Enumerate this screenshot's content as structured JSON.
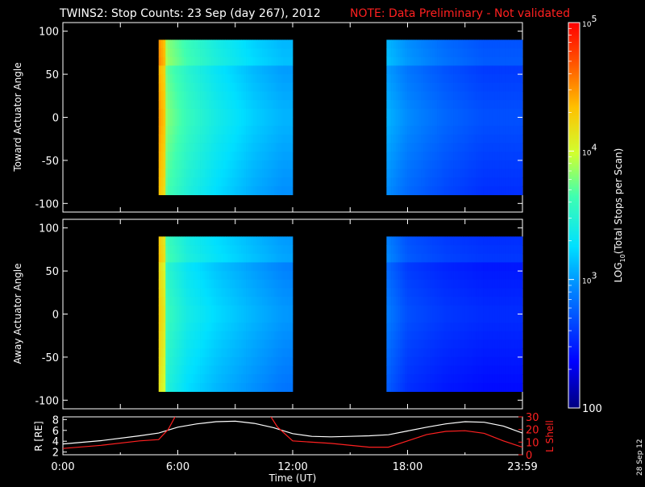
{
  "title": "TWINS2: Stop Counts: 23 Sep (day 267), 2012",
  "note": "NOTE: Data Preliminary - Not validated",
  "date_stamp": "28 Sep 12",
  "colors": {
    "background": "#000000",
    "axis": "#ffffff",
    "note": "#ff2020",
    "r_line": "#ffffff",
    "l_line": "#ff2020"
  },
  "chart_data": [
    {
      "type": "heatmap",
      "ylabel": "Toward Actuator Angle",
      "ylim": [
        -110,
        110
      ],
      "yticks": [
        "100",
        "50",
        "0",
        "-50",
        "-100"
      ],
      "coverage_hours": [
        [
          5.0,
          12.0
        ],
        [
          16.9,
          24.0
        ]
      ],
      "angle_range": [
        -90,
        90
      ],
      "log_counts_profile": [
        {
          "hour": 5.0,
          "log": 4.1
        },
        {
          "hour": 5.5,
          "log": 3.8
        },
        {
          "hour": 6.5,
          "log": 3.6
        },
        {
          "hour": 8.0,
          "log": 3.4
        },
        {
          "hour": 10.0,
          "log": 3.2
        },
        {
          "hour": 11.5,
          "log": 3.1
        },
        {
          "hour": 16.9,
          "log": 3.1
        },
        {
          "hour": 18.0,
          "log": 2.95
        },
        {
          "hour": 20.0,
          "log": 2.8
        },
        {
          "hour": 22.0,
          "log": 2.7
        },
        {
          "hour": 24.0,
          "log": 2.7
        }
      ]
    },
    {
      "type": "heatmap",
      "ylabel": "Away Actuator Angle",
      "ylim": [
        -110,
        110
      ],
      "yticks": [
        "100",
        "50",
        "0",
        "-50",
        "-100"
      ],
      "coverage_hours": [
        [
          5.0,
          12.0
        ],
        [
          16.9,
          24.0
        ]
      ],
      "angle_range": [
        -90,
        90
      ],
      "log_counts_profile": [
        {
          "hour": 5.0,
          "log": 3.9
        },
        {
          "hour": 5.5,
          "log": 3.6
        },
        {
          "hour": 6.5,
          "log": 3.4
        },
        {
          "hour": 8.0,
          "log": 3.25
        },
        {
          "hour": 10.0,
          "log": 3.1
        },
        {
          "hour": 11.5,
          "log": 3.0
        },
        {
          "hour": 16.9,
          "log": 2.9
        },
        {
          "hour": 18.0,
          "log": 2.7
        },
        {
          "hour": 20.0,
          "log": 2.6
        },
        {
          "hour": 22.0,
          "log": 2.55
        },
        {
          "hour": 24.0,
          "log": 2.55
        }
      ]
    },
    {
      "type": "line",
      "ylabel_left": "R [RE]",
      "ylabel_right": "L Shell",
      "xlabel": "Time (UT)",
      "xticks": [
        "0:00",
        "6:00",
        "12:00",
        "18:00",
        "23:59"
      ],
      "left_yticks": [
        "8",
        "6",
        "4",
        "2"
      ],
      "right_yticks": [
        "30",
        "20",
        "10",
        "0"
      ],
      "left_ylim": [
        1.5,
        8.5
      ],
      "right_ylim": [
        0,
        30
      ],
      "series": [
        {
          "axis": "left",
          "x": [
            0,
            2,
            4,
            5,
            6,
            7,
            8,
            9,
            10,
            11,
            12,
            13,
            14,
            15,
            16,
            17,
            18,
            19,
            20,
            21,
            22,
            23,
            24
          ],
          "y": [
            3.5,
            4.1,
            5.0,
            5.5,
            6.6,
            7.2,
            7.6,
            7.7,
            7.3,
            6.5,
            5.4,
            4.9,
            4.8,
            4.9,
            5.0,
            5.2,
            5.9,
            6.6,
            7.2,
            7.6,
            7.5,
            6.8,
            5.5
          ]
        },
        {
          "axis": "right",
          "x": [
            0,
            2,
            4,
            5,
            5.5,
            6.0,
            10.7,
            11.2,
            12,
            14,
            16,
            17,
            18,
            19,
            20,
            21,
            22,
            23,
            24
          ],
          "y": [
            5,
            7.5,
            11,
            12,
            20,
            34,
            34,
            22,
            11,
            9,
            6,
            6,
            11,
            16,
            18.5,
            19,
            17,
            11,
            6
          ]
        }
      ]
    }
  ],
  "colorbar": {
    "label": "LOG10(Total Stops per Scan)",
    "label_prefix": "LOG",
    "label_sub": "10",
    "label_suffix": "(Total Stops per Scan)",
    "scale": "log",
    "range": [
      100,
      100000
    ],
    "ticks": [
      {
        "value": 100000,
        "label_base": "10",
        "label_exp": "5"
      },
      {
        "value": 10000,
        "label_base": "10",
        "label_exp": "4"
      },
      {
        "value": 1000,
        "label_base": "10",
        "label_exp": "3"
      },
      {
        "value": 100,
        "label_base": "100",
        "label_exp": ""
      }
    ]
  }
}
